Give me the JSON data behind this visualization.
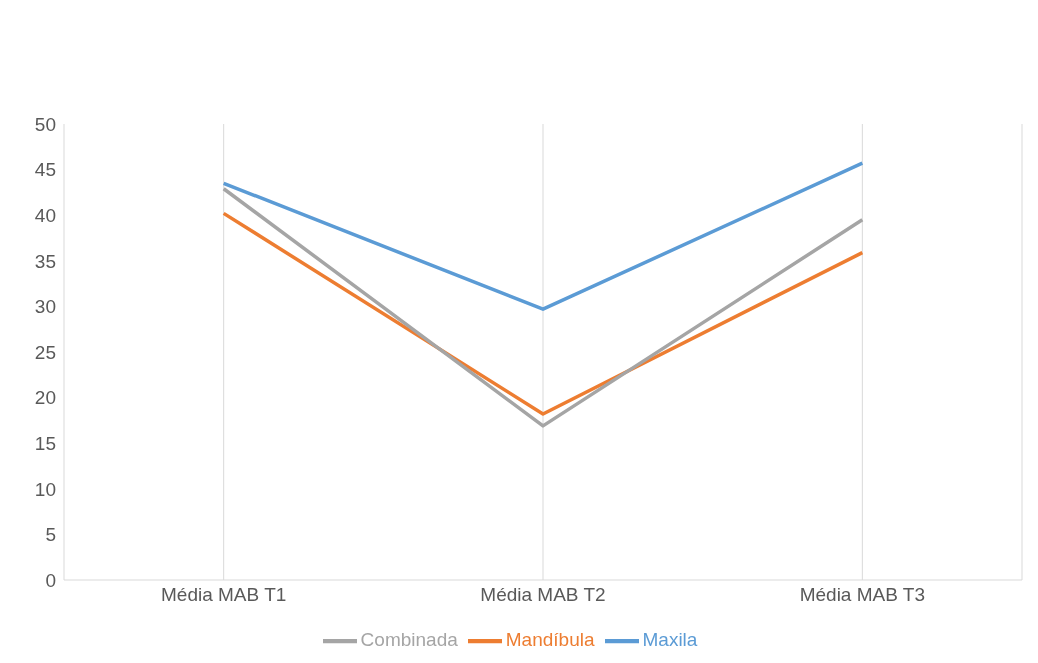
{
  "chart_data": {
    "type": "line",
    "categories": [
      "Média  MAB T1",
      "Média  MAB T2",
      "Média  MAB T3"
    ],
    "series": [
      {
        "name": "Maxila",
        "color": "#5b9bd5",
        "values": [
          43.5,
          29.7,
          45.7
        ]
      },
      {
        "name": "Mandíbula",
        "color": "#ed7d31",
        "values": [
          40.2,
          18.2,
          35.9
        ]
      },
      {
        "name": "Combinada",
        "color": "#a5a5a5",
        "values": [
          42.9,
          16.9,
          39.5
        ]
      }
    ],
    "ylim": [
      0,
      50
    ],
    "yticks": [
      0,
      5,
      10,
      15,
      20,
      25,
      30,
      35,
      40,
      45,
      50
    ],
    "grid": "x",
    "legend": "bottom",
    "marker": "none",
    "line_style": "solid"
  }
}
